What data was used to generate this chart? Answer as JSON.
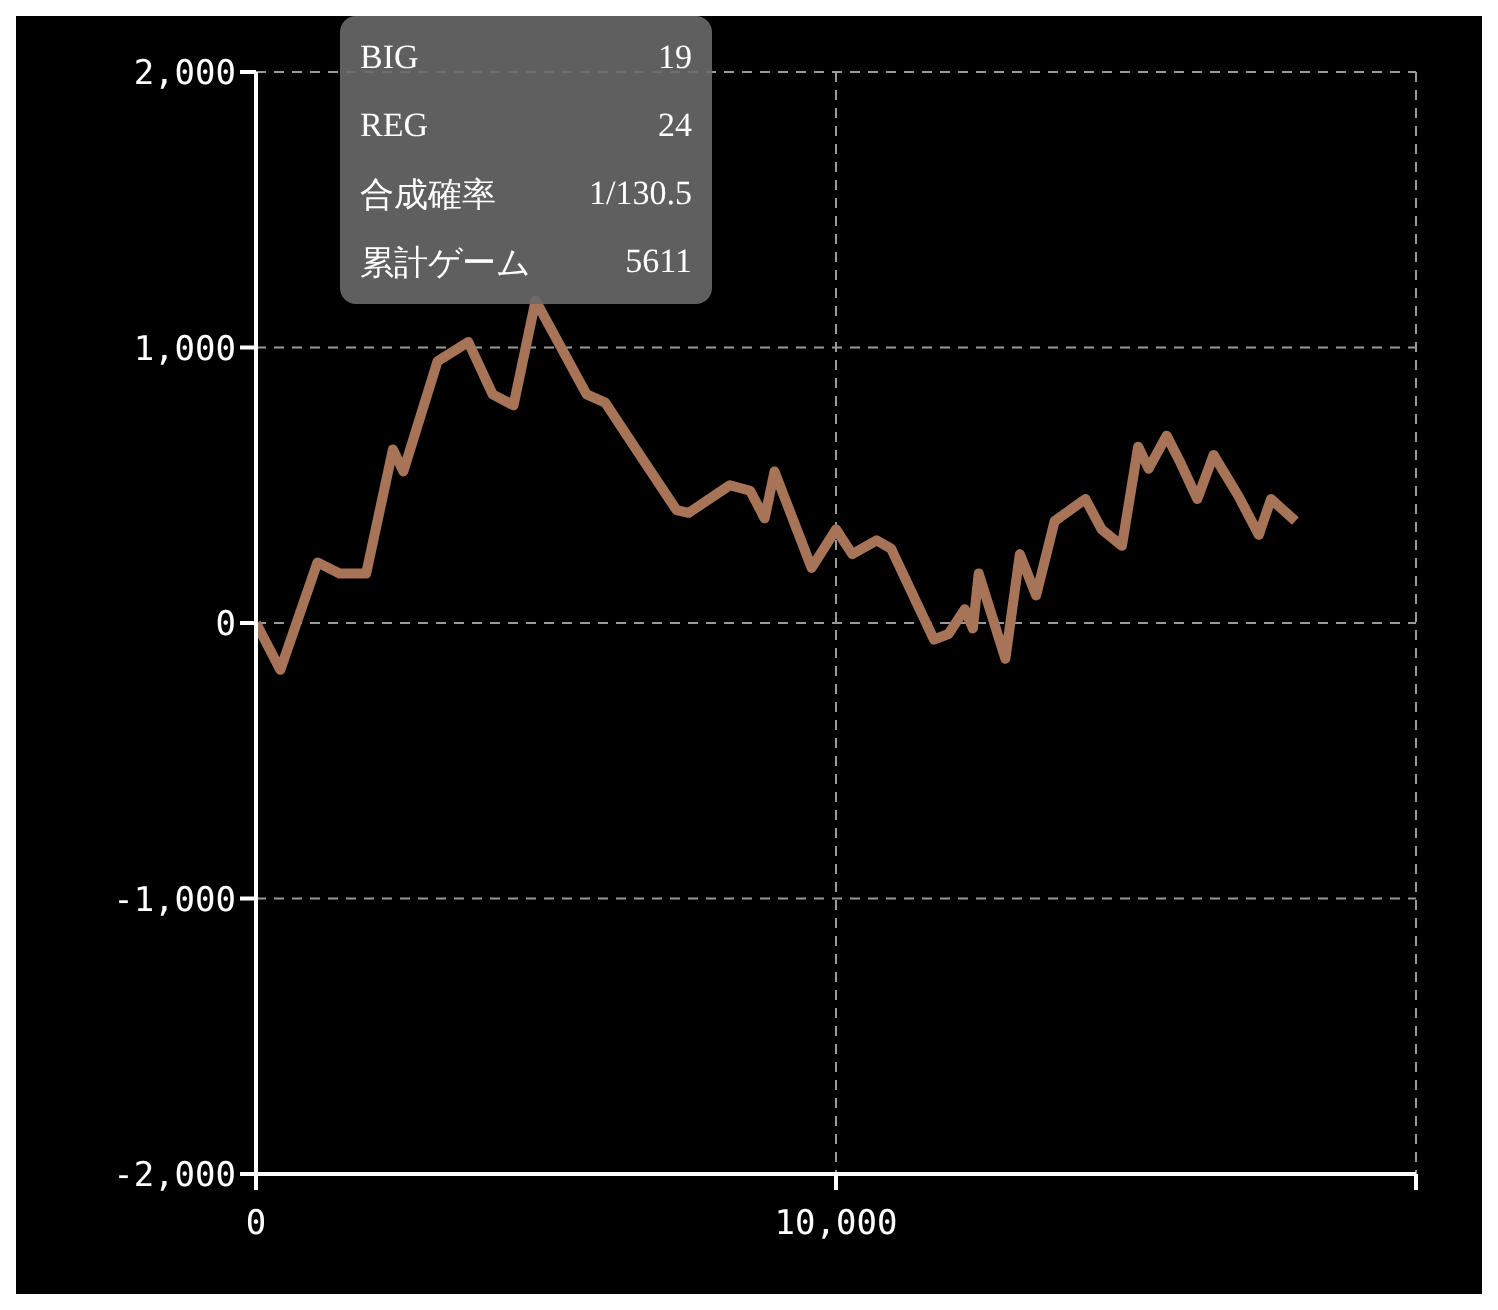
{
  "chart_data": {
    "type": "line",
    "x": [
      0,
      420,
      1060,
      1440,
      1900,
      2360,
      2540,
      3130,
      3660,
      4080,
      4440,
      4820,
      5700,
      6020,
      6650,
      7250,
      7460,
      8170,
      8520,
      8770,
      8940,
      9580,
      10000,
      10280,
      10700,
      10950,
      11690,
      11940,
      12220,
      12360,
      12460,
      12920,
      13170,
      13450,
      13770,
      14300,
      14580,
      14930,
      15210,
      15390,
      15700,
      15920,
      16230,
      16510,
      16940,
      17290,
      17500,
      17920
    ],
    "series": [
      {
        "color": "#a87458",
        "values": [
          0,
          -170,
          220,
          180,
          180,
          630,
          550,
          950,
          1020,
          830,
          790,
          1170,
          830,
          800,
          600,
          410,
          400,
          500,
          480,
          380,
          550,
          200,
          340,
          250,
          300,
          270,
          -60,
          -40,
          50,
          -20,
          180,
          -130,
          250,
          100,
          370,
          450,
          340,
          280,
          640,
          560,
          680,
          590,
          450,
          610,
          460,
          320,
          450,
          370
        ]
      }
    ],
    "xlim": [
      0,
      20000
    ],
    "xticks": [
      0,
      {
        "value": 10000,
        "label": "10,000"
      },
      {
        "value": 20000,
        "label": null
      }
    ],
    "ylim": [
      -2000,
      2000
    ],
    "yticks": [
      {
        "value": -2000,
        "label": "-2,000"
      },
      {
        "value": -1000,
        "label": "-1,000"
      },
      0,
      {
        "value": 1000,
        "label": "1,000"
      },
      {
        "value": 2000,
        "label": "2,000"
      }
    ],
    "grid": true,
    "marker": "none",
    "line_style": "solid",
    "legend": false,
    "annotations": [
      "BIG",
      "19",
      "REG",
      "24",
      "合成確率",
      "1/130.5",
      "累計ゲーム",
      "5611"
    ]
  }
}
